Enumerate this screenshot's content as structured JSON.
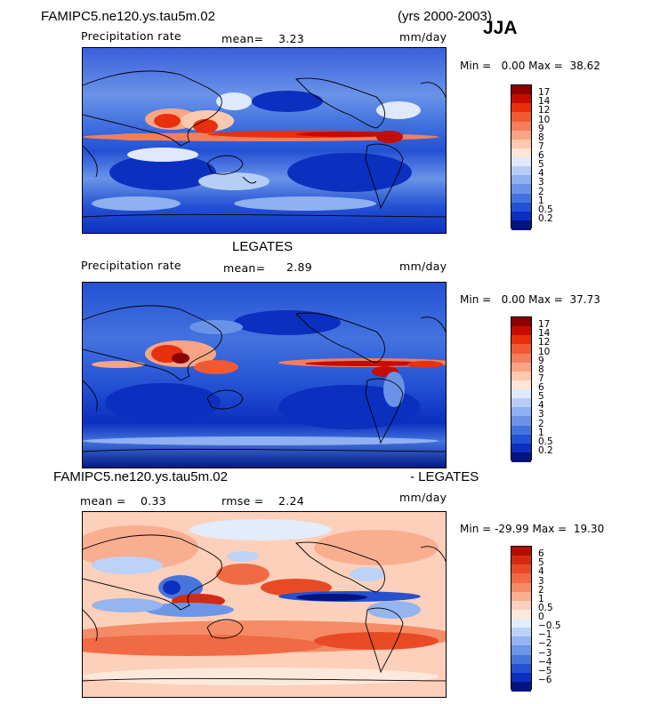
{
  "header": {
    "case": "FAMIPC5.ne120.ys.tau5m.02",
    "years": "(yrs 2000-2003)",
    "season": "JJA"
  },
  "panels": [
    {
      "title": "",
      "variable": "Precipitation rate",
      "stat1_label": "mean=",
      "stat1_value": "3.23",
      "stat2_label": "",
      "stat2_value": "",
      "units": "mm/day",
      "min_label": "Min =",
      "min_value": "0.00",
      "max_label": "Max =",
      "max_value": "38.62",
      "levels": [
        "17",
        "14",
        "12",
        "10",
        "9",
        "8",
        "7",
        "6",
        "5",
        "4",
        "3",
        "2",
        "1",
        "0.5",
        "0.2"
      ],
      "colors": [
        "#8b0000",
        "#c40d00",
        "#e8300d",
        "#f05a33",
        "#f47e5c",
        "#f8a586",
        "#fbc9ae",
        "#fde6d6",
        "#dfe9fb",
        "#b6cdf5",
        "#8fb1ef",
        "#6a93e8",
        "#4473df",
        "#2451d4",
        "#0b2fbf",
        "#00147f"
      ]
    },
    {
      "title": "LEGATES",
      "variable": "Precipitation rate",
      "stat1_label": "mean=",
      "stat1_value": "2.89",
      "stat2_label": "",
      "stat2_value": "",
      "units": "mm/day",
      "min_label": "Min =",
      "min_value": "0.00",
      "max_label": "Max =",
      "max_value": "37.73",
      "levels": [
        "17",
        "14",
        "12",
        "10",
        "9",
        "8",
        "7",
        "6",
        "5",
        "4",
        "3",
        "2",
        "1",
        "0.5",
        "0.2"
      ],
      "colors": [
        "#8b0000",
        "#c40d00",
        "#e8300d",
        "#f05a33",
        "#f47e5c",
        "#f8a586",
        "#fbc9ae",
        "#fde6d6",
        "#dfe9fb",
        "#b6cdf5",
        "#8fb1ef",
        "#6a93e8",
        "#4473df",
        "#2451d4",
        "#0b2fbf",
        "#00147f"
      ]
    },
    {
      "title_left": "FAMIPC5.ne120.ys.tau5m.02",
      "title_right": "- LEGATES",
      "variable": "",
      "stat1_label": "mean =",
      "stat1_value": "0.33",
      "stat2_label": "rmse =",
      "stat2_value": "2.24",
      "units": "mm/day",
      "min_label": "Min =",
      "min_value": "-29.99",
      "max_label": "Max =",
      "max_value": "19.30",
      "levels": [
        "6",
        "5",
        "4",
        "3",
        "2",
        "1",
        "0.5",
        "0",
        "−0.5",
        "−1",
        "−2",
        "−3",
        "−4",
        "−5",
        "−6"
      ],
      "colors": [
        "#b30d00",
        "#d42a10",
        "#e84a26",
        "#f06a44",
        "#f58b66",
        "#f9ae8f",
        "#fcd0ba",
        "#fde9dc",
        "#e2ecfb",
        "#bcd2f6",
        "#94b5ef",
        "#6e96e7",
        "#4875dc",
        "#2550cf",
        "#0c2fc0",
        "#00147f"
      ]
    }
  ]
}
